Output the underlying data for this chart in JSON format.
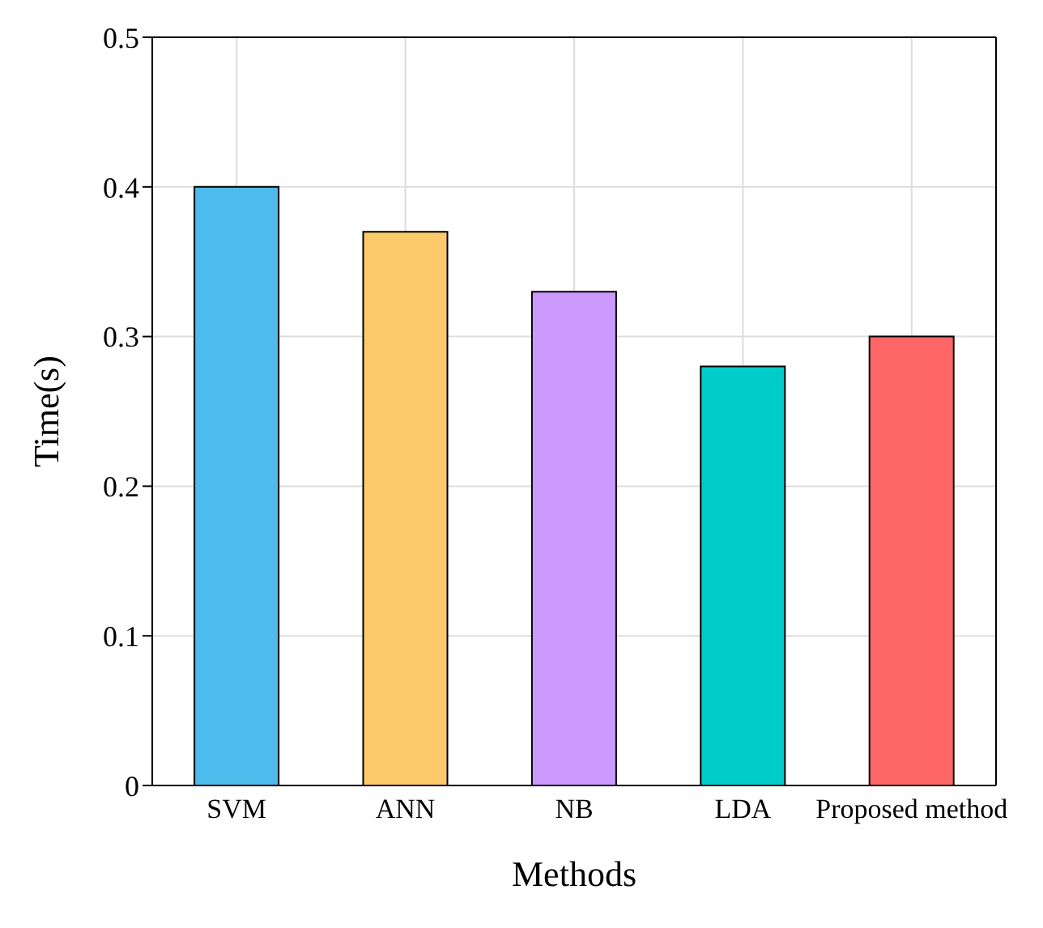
{
  "chart_data": {
    "type": "bar",
    "xlabel": "Methods",
    "ylabel": "Time(s)",
    "categories": [
      "SVM",
      "ANN",
      "NB",
      "LDA",
      "Proposed method"
    ],
    "values": [
      0.4,
      0.37,
      0.33,
      0.28,
      0.3
    ],
    "colors": [
      "#4dbbeb",
      "#fdca6b",
      "#cc99ff",
      "#00cccc",
      "#ff6666"
    ],
    "ylim": [
      0,
      0.5
    ],
    "yticks": [
      0,
      0.1,
      0.2,
      0.3,
      0.4,
      0.5
    ],
    "grid": true
  }
}
